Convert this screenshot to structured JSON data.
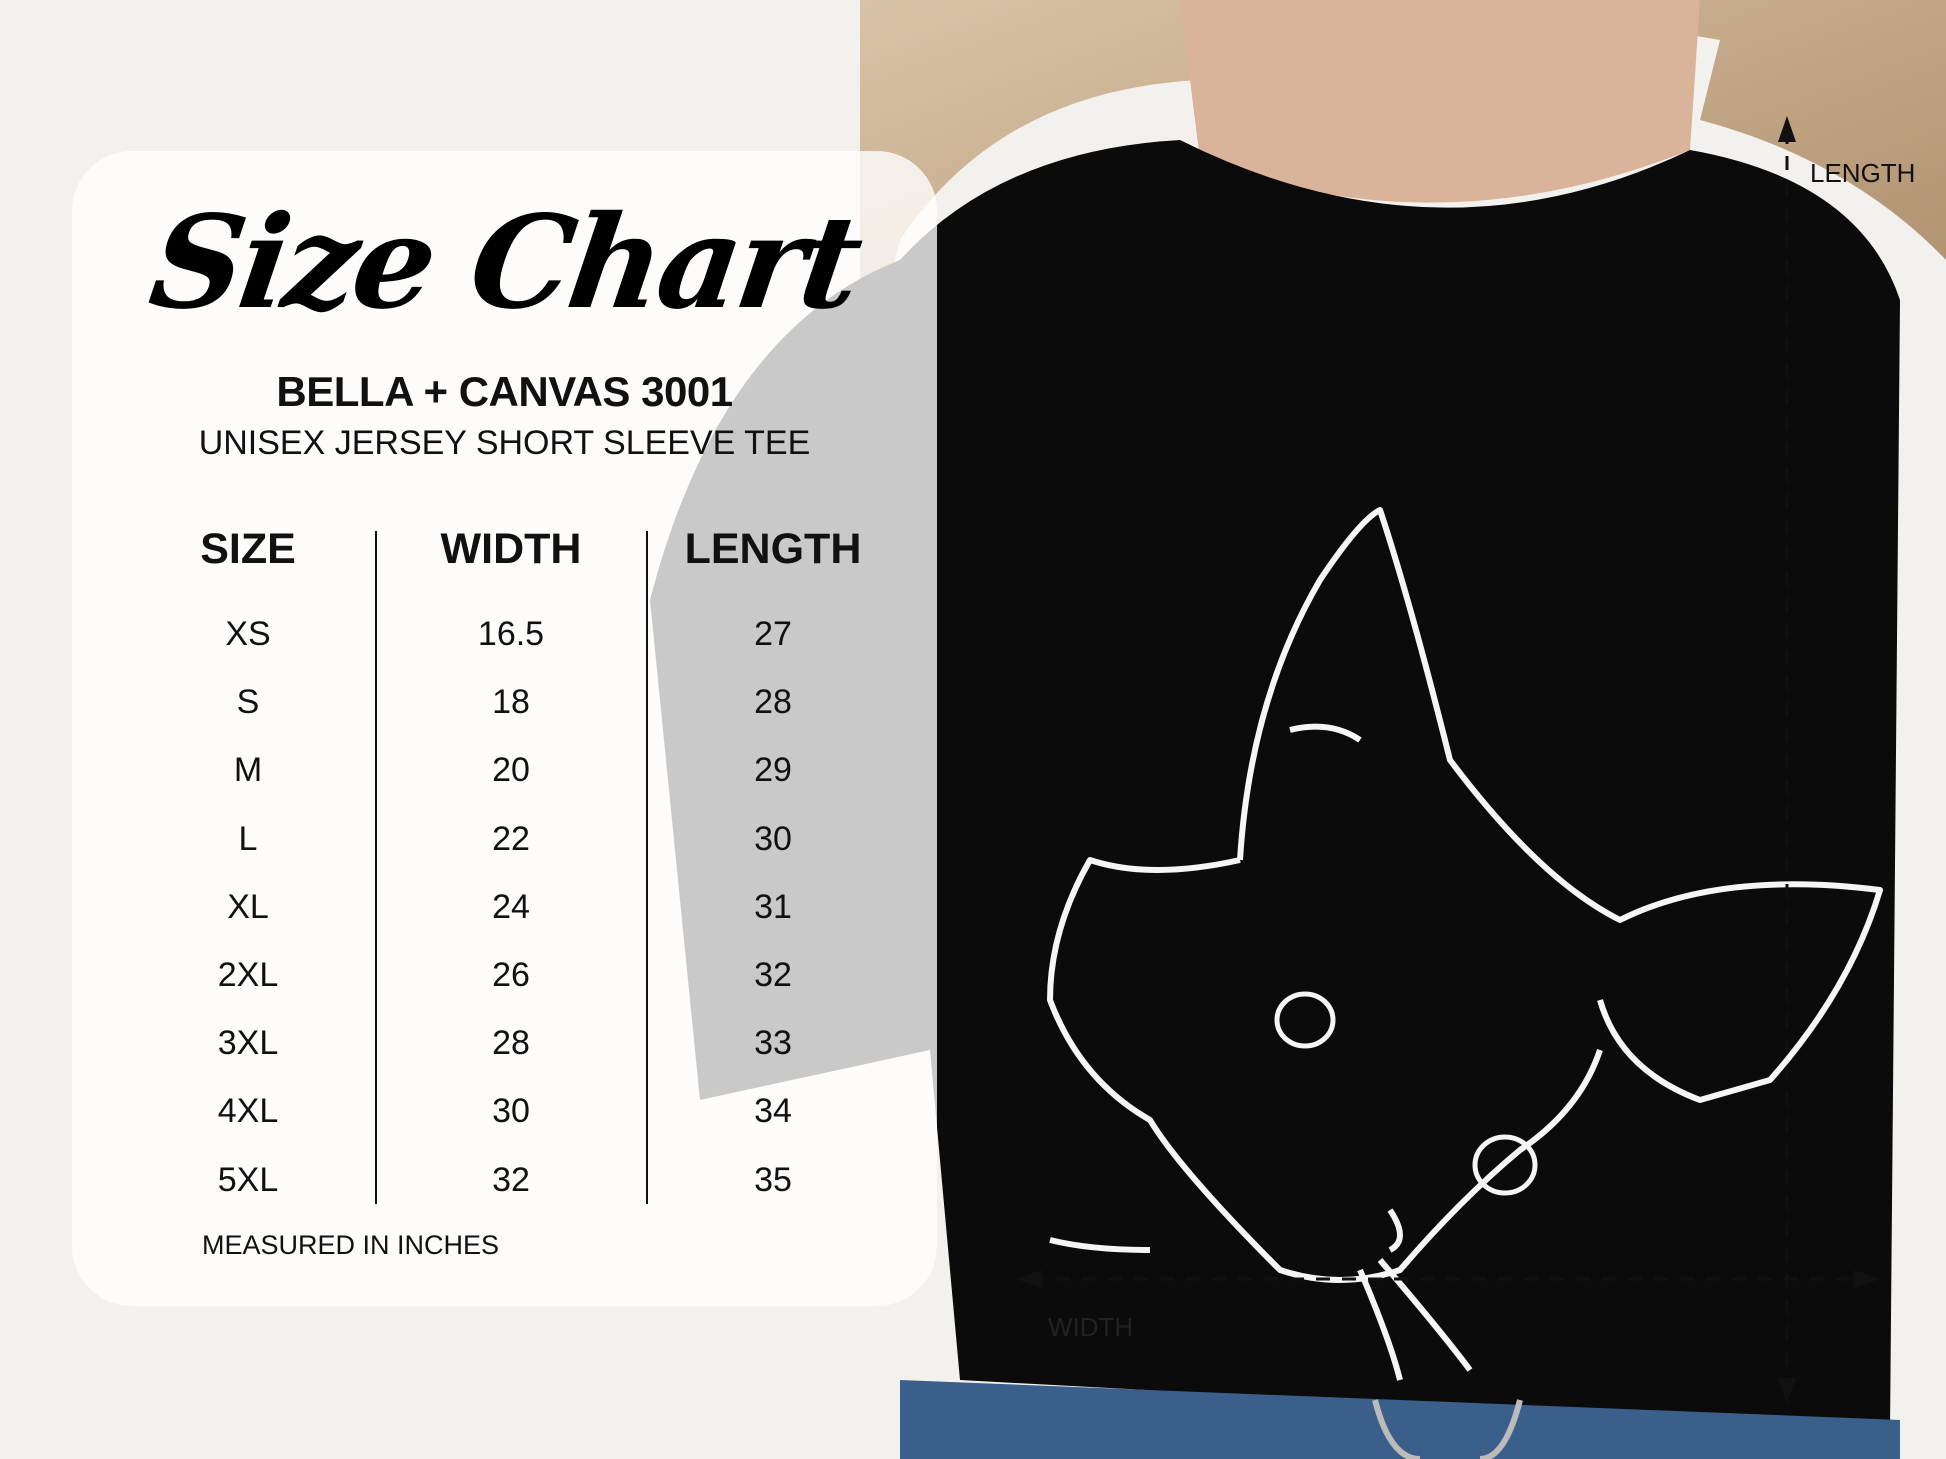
{
  "title": "Size Chart",
  "brand": "BELLA + CANVAS 3001",
  "product": "UNISEX JERSEY SHORT SLEEVE TEE",
  "table": {
    "headers": [
      "SIZE",
      "WIDTH",
      "LENGTH"
    ],
    "rows": [
      [
        "XS",
        "16.5",
        "27"
      ],
      [
        "S",
        "18",
        "28"
      ],
      [
        "M",
        "20",
        "29"
      ],
      [
        "L",
        "22",
        "30"
      ],
      [
        "XL",
        "24",
        "31"
      ],
      [
        "2XL",
        "26",
        "32"
      ],
      [
        "3XL",
        "28",
        "33"
      ],
      [
        "4XL",
        "30",
        "34"
      ],
      [
        "5XL",
        "32",
        "35"
      ]
    ]
  },
  "footnote": "MEASURED IN INCHES",
  "measure_labels": {
    "length": "LENGTH",
    "width": "WIDTH"
  },
  "colors": {
    "shirt": "#0b0b0b",
    "card": "#ffffff",
    "text": "#111111",
    "print": "#f5f5f5"
  }
}
